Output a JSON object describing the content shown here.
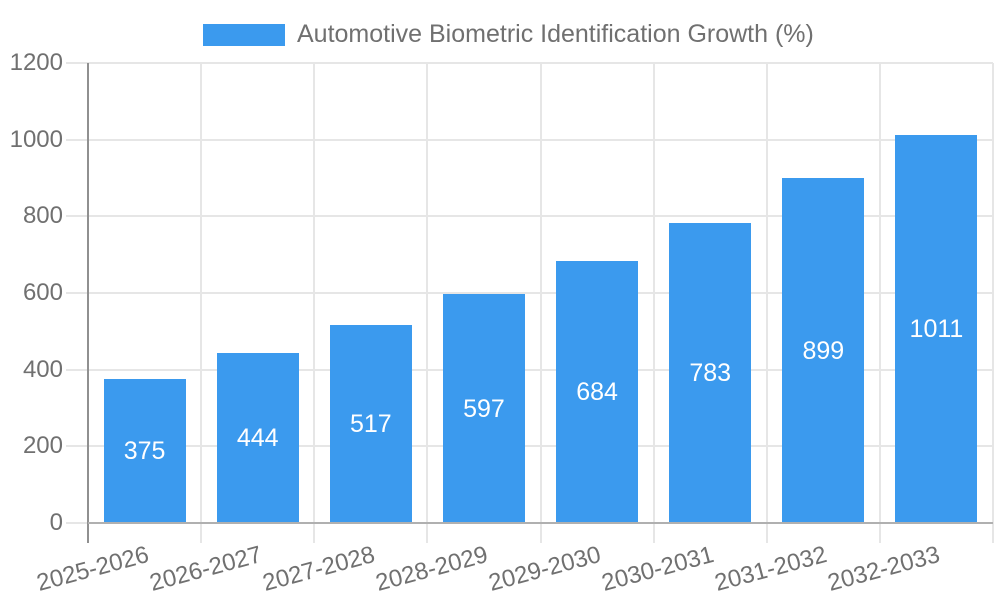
{
  "chart_data": {
    "type": "bar",
    "title": "Automotive Biometric Identification Growth (%)",
    "categories": [
      "2025-2026",
      "2026-2027",
      "2027-2028",
      "2028-2029",
      "2029-2030",
      "2030-2031",
      "2031-2032",
      "2032-2033"
    ],
    "values": [
      375,
      444,
      517,
      597,
      684,
      783,
      899,
      1011
    ],
    "bar_labels": [
      "375",
      "444",
      "517",
      "597",
      "684",
      "783",
      "899",
      "1011"
    ],
    "xlabel": "",
    "ylabel": "",
    "ylim": [
      0,
      1200
    ],
    "y_ticks": [
      0,
      200,
      400,
      600,
      800,
      1000,
      1200
    ],
    "grid": true,
    "legend_position": "top",
    "x_tick_rotation_deg": -15,
    "colors": {
      "bar": "#3b9aee",
      "bar_value_text": "#ffffff",
      "gridline": "#e6e6e6",
      "axis_y": "#909090",
      "axis_x": "#b0b0b0",
      "tick_text": "#707070",
      "legend_text": "#707070",
      "background": "#ffffff"
    }
  }
}
